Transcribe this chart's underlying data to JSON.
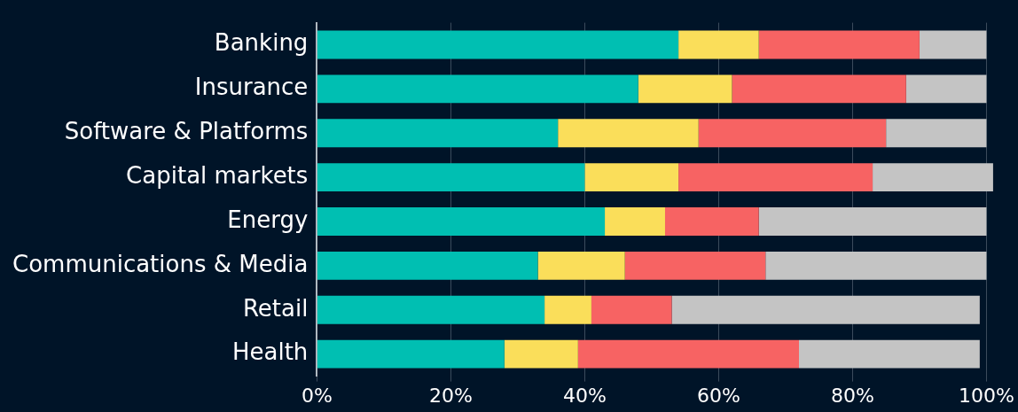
{
  "chart_data": {
    "type": "bar",
    "orientation": "horizontal",
    "stacked": true,
    "categories": [
      "Banking",
      "Insurance",
      "Software & Platforms",
      "Capital markets",
      "Energy",
      "Communications & Media",
      "Retail",
      "Health"
    ],
    "series": [
      {
        "color": "#00bfb2",
        "values": [
          54,
          48,
          36,
          40,
          43,
          33,
          34,
          28
        ]
      },
      {
        "color": "#fade5a",
        "values": [
          12,
          14,
          21,
          14,
          9,
          13,
          7,
          11
        ]
      },
      {
        "color": "#f76363",
        "values": [
          24,
          26,
          28,
          29,
          14,
          21,
          12,
          33
        ]
      },
      {
        "color": "#c4c4c4",
        "values": [
          10,
          12,
          15,
          18,
          34,
          33,
          46,
          27
        ]
      }
    ],
    "xlim": [
      0,
      101
    ],
    "xticks": [
      {
        "value": 0,
        "label": "0%"
      },
      {
        "value": 20,
        "label": "20%"
      },
      {
        "value": 40,
        "label": "40%"
      },
      {
        "value": 60,
        "label": "60%"
      },
      {
        "value": 80,
        "label": "80%"
      },
      {
        "value": 100,
        "label": "100%"
      }
    ],
    "grid": "x",
    "legend": false
  }
}
